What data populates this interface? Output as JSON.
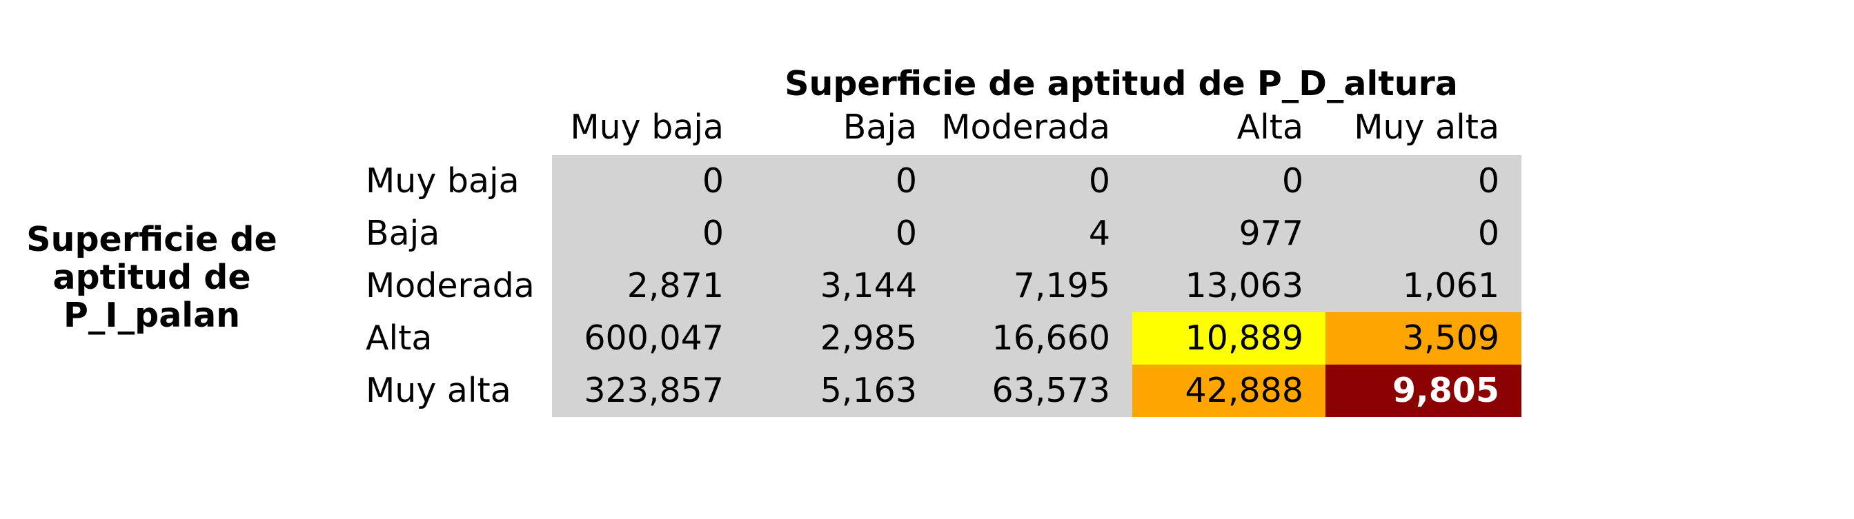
{
  "chart_data": {
    "type": "heatmap",
    "title": "Superficie de aptitud de P_D_altura",
    "ylabel": "Superficie de aptitud de P_I_palan",
    "columns": [
      "Muy baja",
      "Baja",
      "Moderada",
      "Alta",
      "Muy alta"
    ],
    "rows": [
      "Muy baja",
      "Baja",
      "Moderada",
      "Alta",
      "Muy alta"
    ],
    "values": [
      [
        "0",
        "0",
        "0",
        "0",
        "0"
      ],
      [
        "0",
        "0",
        "4",
        "977",
        "0"
      ],
      [
        "2,871",
        "3,144",
        "7,195",
        "13,063",
        "1,061"
      ],
      [
        "600,047",
        "2,985",
        "16,660",
        "10,889",
        "3,509"
      ],
      [
        "323,857",
        "5,163",
        "63,573",
        "42,888",
        "9,805"
      ]
    ],
    "cell_colors": [
      [
        "#d3d3d3",
        "#d3d3d3",
        "#d3d3d3",
        "#d3d3d3",
        "#d3d3d3"
      ],
      [
        "#d3d3d3",
        "#d3d3d3",
        "#d3d3d3",
        "#d3d3d3",
        "#d3d3d3"
      ],
      [
        "#d3d3d3",
        "#d3d3d3",
        "#d3d3d3",
        "#d3d3d3",
        "#d3d3d3"
      ],
      [
        "#d3d3d3",
        "#d3d3d3",
        "#d3d3d3",
        "#ffff00",
        "#ffa500"
      ],
      [
        "#d3d3d3",
        "#d3d3d3",
        "#d3d3d3",
        "#ffa500",
        "#8b0000"
      ]
    ],
    "highlight_cell": {
      "row": 4,
      "col": 4,
      "text_color": "#ffffff",
      "bold": true
    }
  }
}
